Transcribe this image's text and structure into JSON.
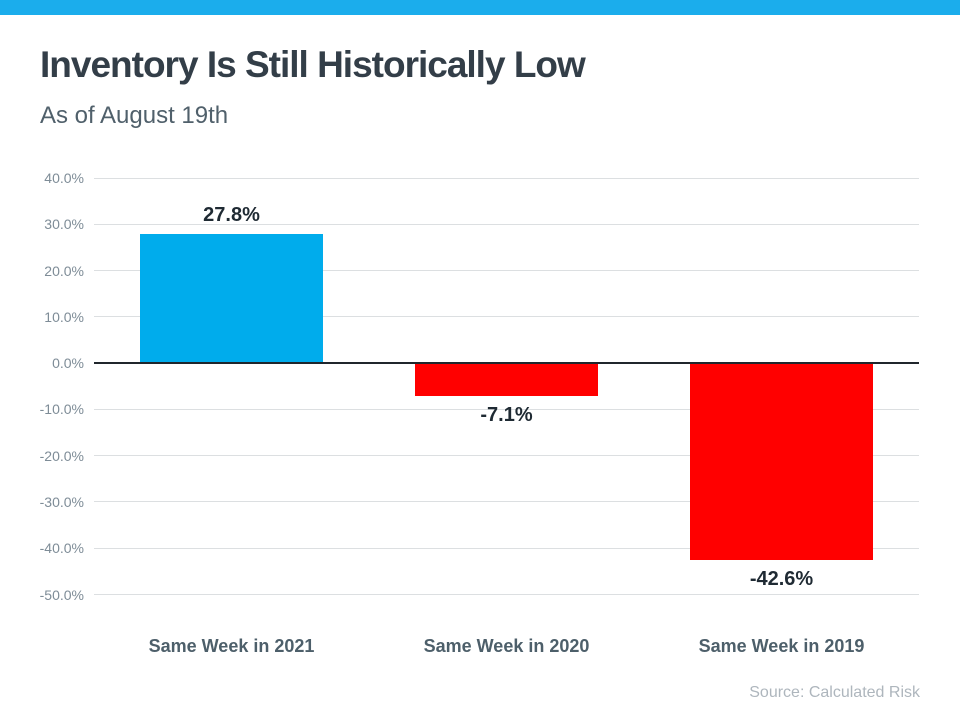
{
  "header": {
    "title": "Inventory Is Still Historically Low",
    "subtitle": "As of August 19th",
    "accent_color": "#1BADEC"
  },
  "footer": {
    "source": "Source: Calculated Risk"
  },
  "chart_data": {
    "type": "bar",
    "title": "Inventory Is Still Historically Low",
    "subtitle": "As of August 19th",
    "categories": [
      "Same Week in 2021",
      "Same Week in 2020",
      "Same Week in 2019"
    ],
    "values": [
      27.8,
      -7.1,
      -42.6
    ],
    "value_labels": [
      "27.8%",
      "-7.1%",
      "-42.6%"
    ],
    "bar_colors": [
      "#00ACEC",
      "#FF0000",
      "#FF0000"
    ],
    "positive_color": "#00ACEC",
    "negative_color": "#FF0000",
    "xlabel": "",
    "ylabel": "",
    "ylim": [
      -50,
      40
    ],
    "ytick_values": [
      40,
      30,
      20,
      10,
      0,
      -10,
      -20,
      -30,
      -40,
      -50
    ],
    "ytick_labels": [
      "40.0%",
      "30.0%",
      "20.0%",
      "10.0%",
      "0.0%",
      "-10.0%",
      "-20.0%",
      "-30.0%",
      "-40.0%",
      "-50.0%"
    ],
    "grid": true,
    "legend": false,
    "source": "Source: Calculated Risk"
  }
}
